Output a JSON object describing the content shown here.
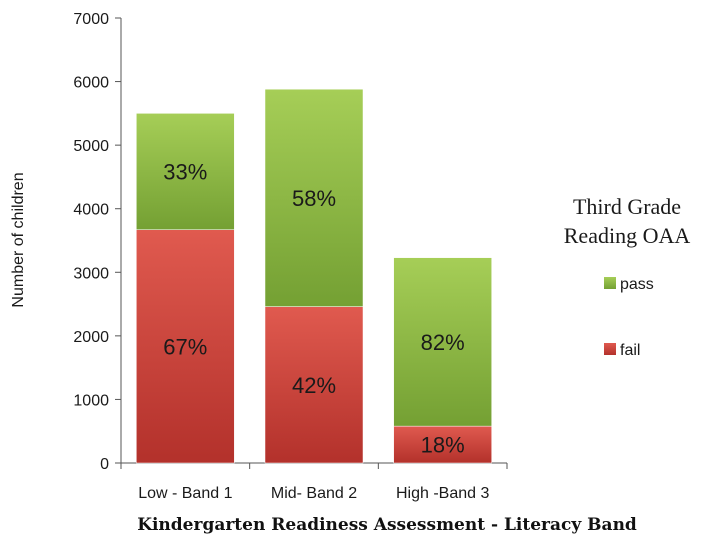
{
  "chart_data": {
    "type": "bar",
    "stacked": true,
    "categories": [
      "Low - Band 1",
      "Mid- Band 2",
      "High -Band 3"
    ],
    "series": [
      {
        "name": "fail",
        "values": [
          3670,
          2460,
          580
        ],
        "labels": [
          "67%",
          "42%",
          "18%"
        ]
      },
      {
        "name": "pass",
        "values": [
          1830,
          3420,
          2650
        ],
        "labels": [
          "33%",
          "58%",
          "82%"
        ]
      }
    ],
    "xlabel": "Kindergarten Readiness Assessment - Literacy Band",
    "ylabel": "Number of children",
    "ylim": [
      0,
      7000
    ],
    "yticks": [
      "0",
      "1000",
      "2000",
      "3000",
      "4000",
      "5000",
      "6000",
      "7000"
    ],
    "legend": {
      "title_lines": [
        "Third Grade",
        "Reading OAA"
      ],
      "placement": "right"
    },
    "grid": false,
    "colors": {
      "pass": "#8fba45",
      "fail": "#c9413a"
    }
  }
}
